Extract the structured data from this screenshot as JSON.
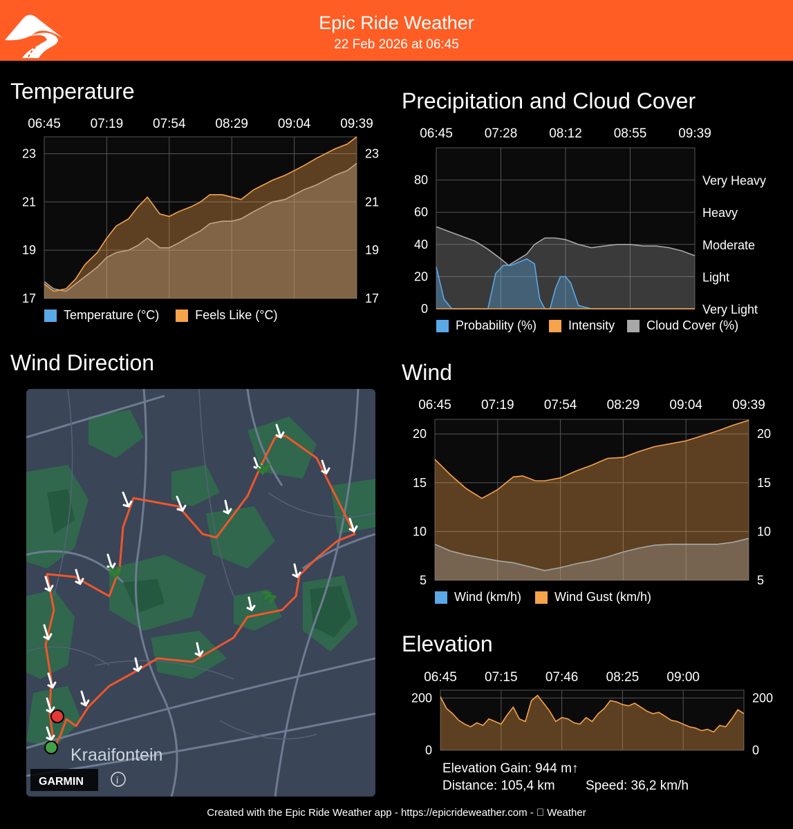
{
  "header": {
    "title": "Epic Ride Weather",
    "subtitle": "22 Feb 2026 at 06:45",
    "bg": "#ff5d24"
  },
  "map": {
    "place_label": "Kraaifontein",
    "brand": "GARMIN",
    "info_glyph": "i"
  },
  "footer": {
    "text": "Created with the Epic Ride Weather app - https://epicrideweather.com -  Weather"
  },
  "stats": {
    "elevation_gain": "Elevation Gain: 944 m↑",
    "distance": "Distance: 105,4 km",
    "speed": "Speed: 36,2 km/h"
  },
  "colors": {
    "blue": "#5aa8e6",
    "orange": "#f7a34a",
    "gray": "#a8a8a8",
    "route": "#f0562a"
  },
  "chart_data": [
    {
      "id": "temperature",
      "type": "area",
      "title": "Temperature",
      "x_ticks": [
        "06:45",
        "07:19",
        "07:54",
        "08:29",
        "09:04",
        "09:39"
      ],
      "ylim": [
        17,
        23.7
      ],
      "y_ticks": [
        17,
        19,
        21,
        23
      ],
      "grid": true,
      "legend": [
        "Temperature (°C)",
        "Feels Like (°C)"
      ],
      "series": [
        {
          "name": "Temperature (°C)",
          "color": "#a8a8a8",
          "x": [
            0,
            0.03,
            0.07,
            0.1,
            0.13,
            0.17,
            0.2,
            0.23,
            0.27,
            0.3,
            0.33,
            0.37,
            0.4,
            0.43,
            0.47,
            0.5,
            0.53,
            0.57,
            0.6,
            0.63,
            0.67,
            0.7,
            0.73,
            0.77,
            0.8,
            0.83,
            0.87,
            0.9,
            0.93,
            0.97,
            1
          ],
          "values": [
            17.7,
            17.4,
            17.3,
            17.6,
            17.9,
            18.3,
            18.7,
            18.9,
            19.0,
            19.2,
            19.5,
            19.1,
            19.1,
            19.3,
            19.6,
            19.8,
            20.1,
            20.2,
            20.2,
            20.3,
            20.6,
            20.8,
            21.0,
            21.1,
            21.3,
            21.5,
            21.7,
            21.9,
            22.1,
            22.3,
            22.6
          ]
        },
        {
          "name": "Feels Like (°C)",
          "color": "#f7a34a",
          "x": [
            0,
            0.03,
            0.07,
            0.1,
            0.13,
            0.17,
            0.2,
            0.23,
            0.27,
            0.3,
            0.33,
            0.37,
            0.4,
            0.43,
            0.47,
            0.5,
            0.53,
            0.57,
            0.6,
            0.63,
            0.67,
            0.7,
            0.73,
            0.77,
            0.8,
            0.83,
            0.87,
            0.9,
            0.93,
            0.97,
            1
          ],
          "values": [
            17.6,
            17.3,
            17.4,
            17.8,
            18.4,
            18.9,
            19.5,
            20.0,
            20.3,
            20.8,
            21.2,
            20.5,
            20.4,
            20.6,
            20.8,
            21.0,
            21.3,
            21.3,
            21.2,
            21.1,
            21.5,
            21.7,
            21.9,
            22.1,
            22.3,
            22.5,
            22.8,
            23.0,
            23.2,
            23.4,
            23.7
          ]
        }
      ]
    },
    {
      "id": "precipitation",
      "type": "area",
      "title": "Precipitation and Cloud Cover",
      "x_ticks": [
        "06:45",
        "07:28",
        "08:12",
        "08:55",
        "09:39"
      ],
      "ylim": [
        0,
        100
      ],
      "y_ticks": [
        0,
        20,
        40,
        60,
        80
      ],
      "right_labels": [
        "Very Light",
        "Light",
        "Moderate",
        "Heavy",
        "Very Heavy"
      ],
      "grid": true,
      "legend": [
        "Probability (%)",
        "Intensity",
        "Cloud Cover (%)"
      ],
      "series": [
        {
          "name": "Cloud Cover (%)",
          "color": "#a8a8a8",
          "x": [
            0,
            0.05,
            0.1,
            0.15,
            0.2,
            0.25,
            0.28,
            0.31,
            0.35,
            0.38,
            0.42,
            0.46,
            0.5,
            0.55,
            0.6,
            0.65,
            0.7,
            0.75,
            0.8,
            0.85,
            0.9,
            0.95,
            1
          ],
          "values": [
            51,
            48,
            45,
            42,
            37,
            31,
            27,
            30,
            34,
            40,
            44,
            44,
            43,
            40,
            38,
            39,
            40,
            40,
            39,
            39,
            38,
            36,
            33
          ]
        },
        {
          "name": "Probability (%)",
          "color": "#5aa8e6",
          "x": [
            0,
            0.03,
            0.06,
            0.1,
            0.15,
            0.2,
            0.23,
            0.26,
            0.29,
            0.32,
            0.35,
            0.38,
            0.4,
            0.42,
            0.44,
            0.46,
            0.48,
            0.5,
            0.52,
            0.55,
            0.6,
            1
          ],
          "values": [
            26,
            6,
            0,
            0,
            0,
            0,
            22,
            27,
            27,
            29,
            31,
            28,
            6,
            0,
            0,
            12,
            20,
            20,
            16,
            2,
            0,
            0
          ]
        },
        {
          "name": "Intensity",
          "color": "#f7a34a",
          "x": [
            0,
            1
          ],
          "values": [
            0,
            0
          ]
        }
      ]
    },
    {
      "id": "wind",
      "type": "area",
      "title": "Wind",
      "x_ticks": [
        "06:45",
        "07:19",
        "07:54",
        "08:29",
        "09:04",
        "09:39"
      ],
      "ylim": [
        5,
        21.5
      ],
      "y_ticks": [
        5,
        10,
        15,
        20
      ],
      "grid": true,
      "legend": [
        "Wind (km/h)",
        "Wind Gust (km/h)"
      ],
      "series": [
        {
          "name": "Wind Gust (km/h)",
          "color": "#f7a34a",
          "x": [
            0,
            0.05,
            0.1,
            0.15,
            0.2,
            0.25,
            0.28,
            0.32,
            0.35,
            0.4,
            0.45,
            0.5,
            0.55,
            0.6,
            0.65,
            0.7,
            0.75,
            0.8,
            0.85,
            0.9,
            0.95,
            1
          ],
          "values": [
            17.4,
            15.8,
            14.4,
            13.4,
            14.3,
            15.6,
            15.7,
            15.2,
            15.2,
            15.5,
            16.2,
            16.8,
            17.5,
            17.6,
            18.2,
            18.7,
            19.0,
            19.3,
            19.8,
            20.3,
            20.9,
            21.4
          ]
        },
        {
          "name": "Wind (km/h)",
          "color": "#a8a8a8",
          "x": [
            0,
            0.05,
            0.1,
            0.15,
            0.2,
            0.25,
            0.3,
            0.35,
            0.4,
            0.45,
            0.5,
            0.55,
            0.6,
            0.65,
            0.7,
            0.75,
            0.8,
            0.85,
            0.9,
            0.95,
            1
          ],
          "values": [
            8.7,
            8.0,
            7.6,
            7.3,
            7.0,
            6.8,
            6.4,
            6.0,
            6.3,
            6.7,
            7.0,
            7.4,
            7.9,
            8.3,
            8.6,
            8.7,
            8.7,
            8.7,
            8.7,
            8.9,
            9.3
          ]
        }
      ]
    },
    {
      "id": "elevation",
      "type": "area",
      "title": "Elevation",
      "x_ticks": [
        "06:45",
        "07:15",
        "07:46",
        "08:25",
        "09:00"
      ],
      "ylim": [
        0,
        230
      ],
      "y_ticks": [
        0,
        200
      ],
      "grid": true,
      "series": [
        {
          "name": "Elevation",
          "color": "#f7a34a",
          "x": [
            0,
            0.02,
            0.04,
            0.06,
            0.08,
            0.1,
            0.12,
            0.14,
            0.16,
            0.18,
            0.2,
            0.22,
            0.24,
            0.26,
            0.28,
            0.3,
            0.32,
            0.34,
            0.36,
            0.38,
            0.4,
            0.42,
            0.44,
            0.46,
            0.48,
            0.5,
            0.52,
            0.54,
            0.56,
            0.58,
            0.6,
            0.62,
            0.64,
            0.66,
            0.68,
            0.7,
            0.72,
            0.74,
            0.76,
            0.78,
            0.8,
            0.82,
            0.84,
            0.86,
            0.88,
            0.9,
            0.92,
            0.94,
            0.96,
            0.98,
            1
          ],
          "values": [
            205,
            160,
            140,
            115,
            100,
            90,
            105,
            95,
            120,
            110,
            100,
            135,
            165,
            120,
            110,
            190,
            210,
            180,
            150,
            110,
            125,
            120,
            105,
            100,
            125,
            110,
            140,
            160,
            190,
            185,
            175,
            170,
            180,
            165,
            150,
            140,
            145,
            130,
            115,
            110,
            100,
            90,
            85,
            75,
            80,
            70,
            95,
            90,
            120,
            155,
            140
          ]
        }
      ]
    }
  ]
}
